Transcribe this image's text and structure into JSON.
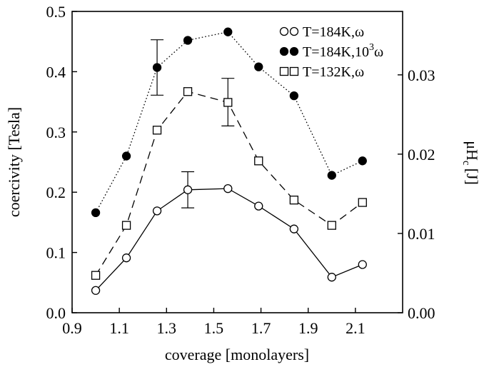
{
  "chart_data": {
    "type": "line",
    "xlabel": "coverage [monolayers]",
    "ylabel": "coercivity [Tesla]",
    "y2label": "μH",
    "y2label_sub": "c",
    "y2label_unit": "[J]",
    "xlim": [
      0.9,
      2.3
    ],
    "ylim": [
      0.0,
      0.5
    ],
    "y2lim": [
      0.0,
      0.038
    ],
    "xticks": [
      0.9,
      1.1,
      1.3,
      1.5,
      1.7,
      1.9,
      2.1
    ],
    "xtick_labels": [
      "0.9",
      "1.1",
      "1.3",
      "1.5",
      "1.7",
      "1.9",
      "2.1"
    ],
    "yticks": [
      0.0,
      0.1,
      0.2,
      0.3,
      0.4,
      0.5
    ],
    "ytick_labels": [
      "0.0",
      "0.1",
      "0.2",
      "0.3",
      "0.4",
      "0.5"
    ],
    "y2ticks": [
      0.0,
      0.01,
      0.02,
      0.03
    ],
    "y2tick_labels": [
      "0.00",
      "0.01",
      "0.02",
      "0.03"
    ],
    "grid": false,
    "legend_position": "top-right",
    "series": [
      {
        "name": "T=184K,ω",
        "marker": "open-circle",
        "line": "solid",
        "x": [
          1.0,
          1.13,
          1.26,
          1.39,
          1.56,
          1.69,
          1.84,
          2.0,
          2.13
        ],
        "y": [
          0.037,
          0.091,
          0.169,
          0.204,
          0.206,
          0.177,
          0.139,
          0.059,
          0.08
        ],
        "errorbars": [
          {
            "x": 1.39,
            "low": 0.174,
            "high": 0.234
          }
        ]
      },
      {
        "name": "T=184K,10",
        "name_sup": "3",
        "name_tail": "ω",
        "marker": "filled-circle",
        "line": "dotted",
        "x": [
          1.0,
          1.13,
          1.26,
          1.39,
          1.56,
          1.69,
          1.84,
          2.0,
          2.13
        ],
        "y": [
          0.166,
          0.26,
          0.407,
          0.452,
          0.466,
          0.408,
          0.36,
          0.228,
          0.252
        ],
        "errorbars": [
          {
            "x": 1.26,
            "low": 0.361,
            "high": 0.453
          }
        ]
      },
      {
        "name": "T=132K,ω",
        "marker": "open-square",
        "line": "dashed",
        "x": [
          1.0,
          1.13,
          1.26,
          1.39,
          1.56,
          1.69,
          1.84,
          2.0,
          2.13
        ],
        "y": [
          0.062,
          0.145,
          0.303,
          0.367,
          0.349,
          0.252,
          0.187,
          0.145,
          0.183
        ],
        "errorbars": [
          {
            "x": 1.56,
            "low": 0.31,
            "high": 0.389
          }
        ]
      }
    ]
  }
}
